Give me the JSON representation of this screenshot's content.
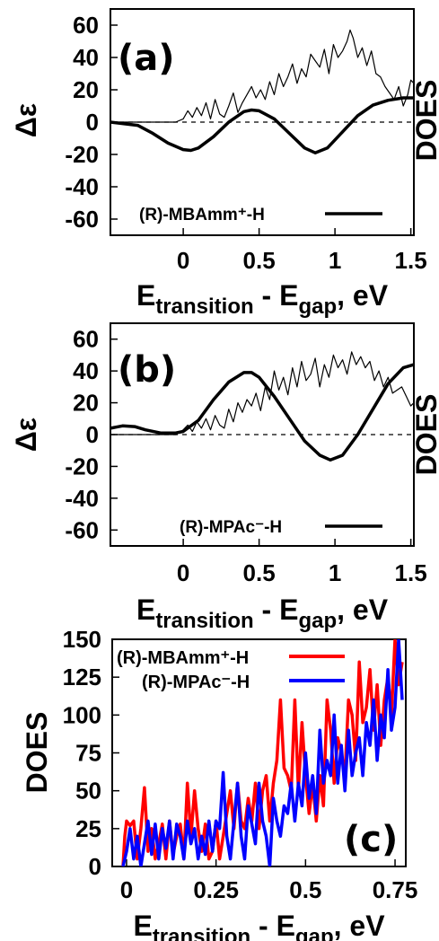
{
  "chart_data": [
    {
      "panel": "(a)",
      "type": "line",
      "xlabel": "E_transition - E_gap, eV",
      "xlabel_main": "E",
      "xlabel_sub1": "transition",
      "xlabel_mid": " - E",
      "xlabel_sub2": "gap",
      "xlabel_end": ", eV",
      "ylabel": "Δε",
      "y2label": "DOES",
      "xlim": [
        -0.48,
        1.52
      ],
      "ylim": [
        -70,
        70
      ],
      "xticks": [
        "0",
        "0.5",
        "1",
        "1.5"
      ],
      "xtick_values": [
        0,
        0.5,
        1,
        1.5
      ],
      "yticks": [
        "60",
        "40",
        "20",
        "0",
        "-20",
        "-40",
        "-60"
      ],
      "ytick_values": [
        60,
        40,
        20,
        0,
        -20,
        -40,
        -60
      ],
      "legend": "(R)-MBAmm⁺-H",
      "series": [
        {
          "name": "(R)-MBAmm⁺-H",
          "style": "thick",
          "color": "#000000",
          "x": [
            -0.48,
            -0.3,
            -0.2,
            -0.1,
            0,
            0.05,
            0.1,
            0.2,
            0.3,
            0.4,
            0.45,
            0.5,
            0.6,
            0.7,
            0.8,
            0.87,
            0.95,
            1.05,
            1.15,
            1.25,
            1.35,
            1.45,
            1.52
          ],
          "y": [
            0,
            -2,
            -7,
            -13,
            -17,
            -17.5,
            -16,
            -9,
            0,
            6.5,
            7.5,
            7,
            2,
            -7,
            -16,
            -19,
            -16,
            -6,
            4,
            10.5,
            13.5,
            15,
            15
          ]
        },
        {
          "name": "DOES",
          "style": "thin",
          "color": "#000000",
          "x": [
            -0.48,
            -0.1,
            -0.05,
            0,
            0.03,
            0.06,
            0.09,
            0.12,
            0.15,
            0.18,
            0.21,
            0.24,
            0.27,
            0.3,
            0.33,
            0.36,
            0.39,
            0.42,
            0.45,
            0.48,
            0.51,
            0.54,
            0.57,
            0.6,
            0.63,
            0.66,
            0.69,
            0.72,
            0.75,
            0.78,
            0.81,
            0.84,
            0.87,
            0.9,
            0.93,
            0.96,
            0.99,
            1.02,
            1.05,
            1.08,
            1.1,
            1.12,
            1.15,
            1.18,
            1.21,
            1.24,
            1.27,
            1.3,
            1.33,
            1.36,
            1.39,
            1.42,
            1.45,
            1.48,
            1.5,
            1.52
          ],
          "y": [
            0,
            0,
            0,
            2,
            7,
            3,
            9,
            4,
            12,
            2,
            14,
            5,
            3,
            10,
            18,
            6,
            12,
            17,
            22,
            15,
            20,
            14,
            25,
            17,
            30,
            22,
            28,
            36,
            24,
            33,
            28,
            42,
            38,
            34,
            45,
            30,
            48,
            40,
            44,
            50,
            57,
            52,
            40,
            46,
            35,
            44,
            30,
            28,
            22,
            18,
            14,
            22,
            10,
            17,
            26,
            24
          ]
        }
      ]
    },
    {
      "panel": "(b)",
      "type": "line",
      "xlabel": "E_transition - E_gap, eV",
      "xlabel_main": "E",
      "xlabel_sub1": "transition",
      "xlabel_mid": " - E",
      "xlabel_sub2": "gap",
      "xlabel_end": ", eV",
      "ylabel": "Δε",
      "y2label": "DOES",
      "xlim": [
        -0.48,
        1.52
      ],
      "ylim": [
        -70,
        70
      ],
      "xticks": [
        "0",
        "0.5",
        "1",
        "1.5"
      ],
      "xtick_values": [
        0,
        0.5,
        1,
        1.5
      ],
      "yticks": [
        "60",
        "40",
        "20",
        "0",
        "-20",
        "-40",
        "-60"
      ],
      "ytick_values": [
        60,
        40,
        20,
        0,
        -20,
        -40,
        -60
      ],
      "legend": "(R)-MPAc⁻-H",
      "series": [
        {
          "name": "(R)-MPAc⁻-H",
          "style": "thick",
          "color": "#000000",
          "x": [
            -0.48,
            -0.4,
            -0.32,
            -0.25,
            -0.15,
            -0.05,
            0,
            0.1,
            0.2,
            0.3,
            0.4,
            0.45,
            0.5,
            0.6,
            0.7,
            0.8,
            0.9,
            0.97,
            1.05,
            1.15,
            1.25,
            1.35,
            1.45,
            1.52
          ],
          "y": [
            4,
            5.5,
            5,
            3,
            1,
            1,
            2,
            9,
            22,
            33,
            39,
            39,
            36,
            24,
            10,
            -4,
            -13,
            -16,
            -13,
            0,
            16,
            32,
            42,
            44
          ]
        },
        {
          "name": "DOES",
          "style": "thin",
          "color": "#000000",
          "x": [
            -0.48,
            -0.05,
            0,
            0.03,
            0.06,
            0.09,
            0.12,
            0.15,
            0.18,
            0.21,
            0.24,
            0.27,
            0.3,
            0.33,
            0.36,
            0.39,
            0.42,
            0.45,
            0.48,
            0.51,
            0.54,
            0.57,
            0.6,
            0.63,
            0.66,
            0.69,
            0.72,
            0.75,
            0.78,
            0.81,
            0.84,
            0.87,
            0.9,
            0.93,
            0.96,
            0.99,
            1.02,
            1.05,
            1.08,
            1.11,
            1.14,
            1.17,
            1.2,
            1.23,
            1.26,
            1.29,
            1.32,
            1.35,
            1.38,
            1.41,
            1.44,
            1.47,
            1.5,
            1.52
          ],
          "y": [
            0,
            0,
            3,
            6,
            2,
            8,
            4,
            10,
            3,
            12,
            6,
            4,
            16,
            8,
            20,
            14,
            22,
            18,
            26,
            15,
            30,
            22,
            40,
            28,
            36,
            25,
            42,
            30,
            46,
            34,
            38,
            48,
            30,
            44,
            36,
            50,
            42,
            47,
            38,
            52,
            44,
            49,
            42,
            46,
            34,
            40,
            30,
            36,
            26,
            28,
            30,
            24,
            18,
            20
          ]
        }
      ]
    },
    {
      "panel": "(c)",
      "type": "line",
      "xlabel": "E_transition - E_gap, eV",
      "xlabel_main": "E",
      "xlabel_sub1": "transition",
      "xlabel_mid": " - E",
      "xlabel_sub2": "gap",
      "xlabel_end": ", eV",
      "ylabel": "DOES",
      "xlim": [
        -0.04,
        0.78
      ],
      "ylim": [
        0,
        150
      ],
      "xticks": [
        "0",
        "0.25",
        "0.5",
        "0.75"
      ],
      "xtick_values": [
        0,
        0.25,
        0.5,
        0.75
      ],
      "yticks": [
        "150",
        "125",
        "100",
        "75",
        "50",
        "25",
        "0"
      ],
      "ytick_values": [
        150,
        125,
        100,
        75,
        50,
        25,
        0
      ],
      "legend_position": "top-right",
      "series": [
        {
          "name": "(R)-MBAmm⁺-H",
          "color": "#ff0000",
          "x": [
            -0.01,
            -0.005,
            0,
            0.01,
            0.02,
            0.03,
            0.04,
            0.05,
            0.06,
            0.07,
            0.08,
            0.09,
            0.1,
            0.11,
            0.12,
            0.13,
            0.14,
            0.15,
            0.16,
            0.17,
            0.18,
            0.19,
            0.2,
            0.21,
            0.22,
            0.23,
            0.24,
            0.25,
            0.26,
            0.27,
            0.28,
            0.29,
            0.3,
            0.31,
            0.32,
            0.33,
            0.34,
            0.35,
            0.36,
            0.37,
            0.38,
            0.39,
            0.4,
            0.41,
            0.42,
            0.43,
            0.44,
            0.45,
            0.46,
            0.47,
            0.48,
            0.49,
            0.5,
            0.51,
            0.52,
            0.53,
            0.54,
            0.55,
            0.56,
            0.57,
            0.58,
            0.59,
            0.6,
            0.61,
            0.62,
            0.63,
            0.64,
            0.65,
            0.66,
            0.67,
            0.68,
            0.69,
            0.7,
            0.71,
            0.72,
            0.73,
            0.74,
            0.75,
            0.76,
            0.77
          ],
          "y": [
            0,
            20,
            30,
            27,
            30,
            5,
            25,
            52,
            10,
            25,
            5,
            15,
            28,
            5,
            30,
            8,
            20,
            28,
            5,
            55,
            20,
            50,
            25,
            10,
            28,
            5,
            10,
            30,
            5,
            20,
            35,
            50,
            25,
            55,
            30,
            25,
            45,
            30,
            55,
            25,
            50,
            60,
            30,
            55,
            70,
            110,
            65,
            60,
            50,
            110,
            50,
            95,
            60,
            35,
            55,
            30,
            60,
            40,
            110,
            90,
            55,
            85,
            75,
            60,
            110,
            100,
            70,
            135,
            95,
            105,
            130,
            90,
            120,
            80,
            110,
            125,
            100,
            150,
            120,
            135
          ]
        },
        {
          "name": "(R)-MPAc⁻-H",
          "color": "#0000ff",
          "x": [
            -0.01,
            0,
            0.01,
            0.02,
            0.03,
            0.04,
            0.05,
            0.06,
            0.07,
            0.08,
            0.09,
            0.1,
            0.11,
            0.12,
            0.13,
            0.14,
            0.15,
            0.16,
            0.17,
            0.18,
            0.19,
            0.2,
            0.21,
            0.22,
            0.23,
            0.24,
            0.25,
            0.26,
            0.27,
            0.28,
            0.29,
            0.3,
            0.31,
            0.32,
            0.33,
            0.34,
            0.35,
            0.36,
            0.37,
            0.38,
            0.39,
            0.4,
            0.41,
            0.42,
            0.43,
            0.44,
            0.45,
            0.46,
            0.47,
            0.48,
            0.49,
            0.5,
            0.51,
            0.52,
            0.53,
            0.54,
            0.55,
            0.56,
            0.57,
            0.58,
            0.59,
            0.6,
            0.61,
            0.62,
            0.63,
            0.64,
            0.65,
            0.66,
            0.67,
            0.68,
            0.69,
            0.7,
            0.71,
            0.72,
            0.73,
            0.74,
            0.75,
            0.76,
            0.77
          ],
          "y": [
            0,
            10,
            25,
            5,
            20,
            0,
            15,
            30,
            8,
            28,
            5,
            25,
            12,
            30,
            5,
            28,
            20,
            5,
            30,
            15,
            25,
            5,
            20,
            8,
            30,
            10,
            30,
            25,
            62,
            20,
            5,
            30,
            55,
            20,
            5,
            40,
            28,
            15,
            55,
            30,
            20,
            0,
            45,
            30,
            20,
            40,
            35,
            55,
            30,
            55,
            40,
            75,
            45,
            60,
            35,
            90,
            55,
            70,
            60,
            100,
            55,
            80,
            50,
            90,
            60,
            75,
            85,
            60,
            95,
            80,
            110,
            70,
            100,
            85,
            130,
            90,
            105,
            150,
            110
          ]
        }
      ]
    }
  ]
}
